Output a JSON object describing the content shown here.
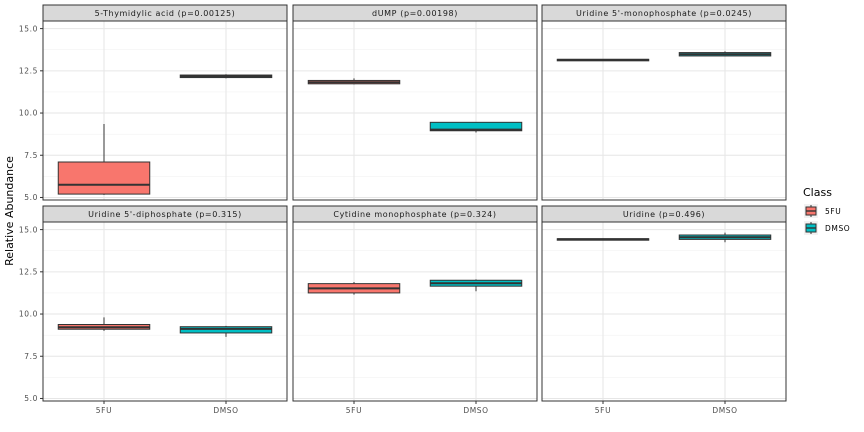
{
  "chart_data": {
    "type": "box",
    "ylabel": "Relative Abundance",
    "xlabel": "",
    "categories": [
      "5FU",
      "DMSO"
    ],
    "ylim": [
      4.85,
      15.45
    ],
    "y_ticks": [
      "5.0",
      "7.5",
      "10.0",
      "12.5",
      "15.0"
    ],
    "y_tick_values": [
      5.0,
      7.5,
      10.0,
      12.5,
      15.0
    ],
    "grid": true,
    "legend": {
      "title": "Class",
      "position": "right",
      "entries": [
        {
          "name": "5FU",
          "color": "#F8766D"
        },
        {
          "name": "DMSO",
          "color": "#00BFC4"
        }
      ]
    },
    "panels": [
      {
        "title": "5-Thymidylic acid (p=0.00125)",
        "boxes": [
          {
            "group": "5FU",
            "min": 5.15,
            "q1": 5.2,
            "median": 5.75,
            "q3": 7.1,
            "max": 9.35
          },
          {
            "group": "DMSO",
            "min": 12.05,
            "q1": 12.1,
            "median": 12.17,
            "q3": 12.25,
            "max": 12.3
          }
        ]
      },
      {
        "title": "dUMP (p=0.00198)",
        "boxes": [
          {
            "group": "5FU",
            "min": 11.7,
            "q1": 11.73,
            "median": 11.82,
            "q3": 11.93,
            "max": 12.05
          },
          {
            "group": "DMSO",
            "min": 8.85,
            "q1": 8.95,
            "median": 9.02,
            "q3": 9.45,
            "max": 9.45
          }
        ]
      },
      {
        "title": "Uridine 5'-monophosphate (p=0.0245)",
        "boxes": [
          {
            "group": "5FU",
            "min": 13.1,
            "q1": 13.12,
            "median": 13.15,
            "q3": 13.18,
            "max": 13.2
          },
          {
            "group": "DMSO",
            "min": 13.35,
            "q1": 13.38,
            "median": 13.48,
            "q3": 13.58,
            "max": 13.65
          }
        ]
      },
      {
        "title": "Uridine 5'-diphosphate (p=0.315)",
        "boxes": [
          {
            "group": "5FU",
            "min": 9.0,
            "q1": 9.1,
            "median": 9.22,
            "q3": 9.38,
            "max": 9.8
          },
          {
            "group": "DMSO",
            "min": 8.65,
            "q1": 8.88,
            "median": 9.12,
            "q3": 9.25,
            "max": 9.3
          }
        ]
      },
      {
        "title": "Cytidine monophosphate (p=0.324)",
        "boxes": [
          {
            "group": "5FU",
            "min": 11.15,
            "q1": 11.25,
            "median": 11.52,
            "q3": 11.8,
            "max": 11.9
          },
          {
            "group": "DMSO",
            "min": 11.35,
            "q1": 11.65,
            "median": 11.82,
            "q3": 12.0,
            "max": 12.05
          }
        ]
      },
      {
        "title": "Uridine (p=0.496)",
        "boxes": [
          {
            "group": "5FU",
            "min": 14.38,
            "q1": 14.4,
            "median": 14.43,
            "q3": 14.46,
            "max": 14.48
          },
          {
            "group": "DMSO",
            "min": 14.25,
            "q1": 14.42,
            "median": 14.55,
            "q3": 14.68,
            "max": 14.82
          }
        ]
      }
    ]
  }
}
